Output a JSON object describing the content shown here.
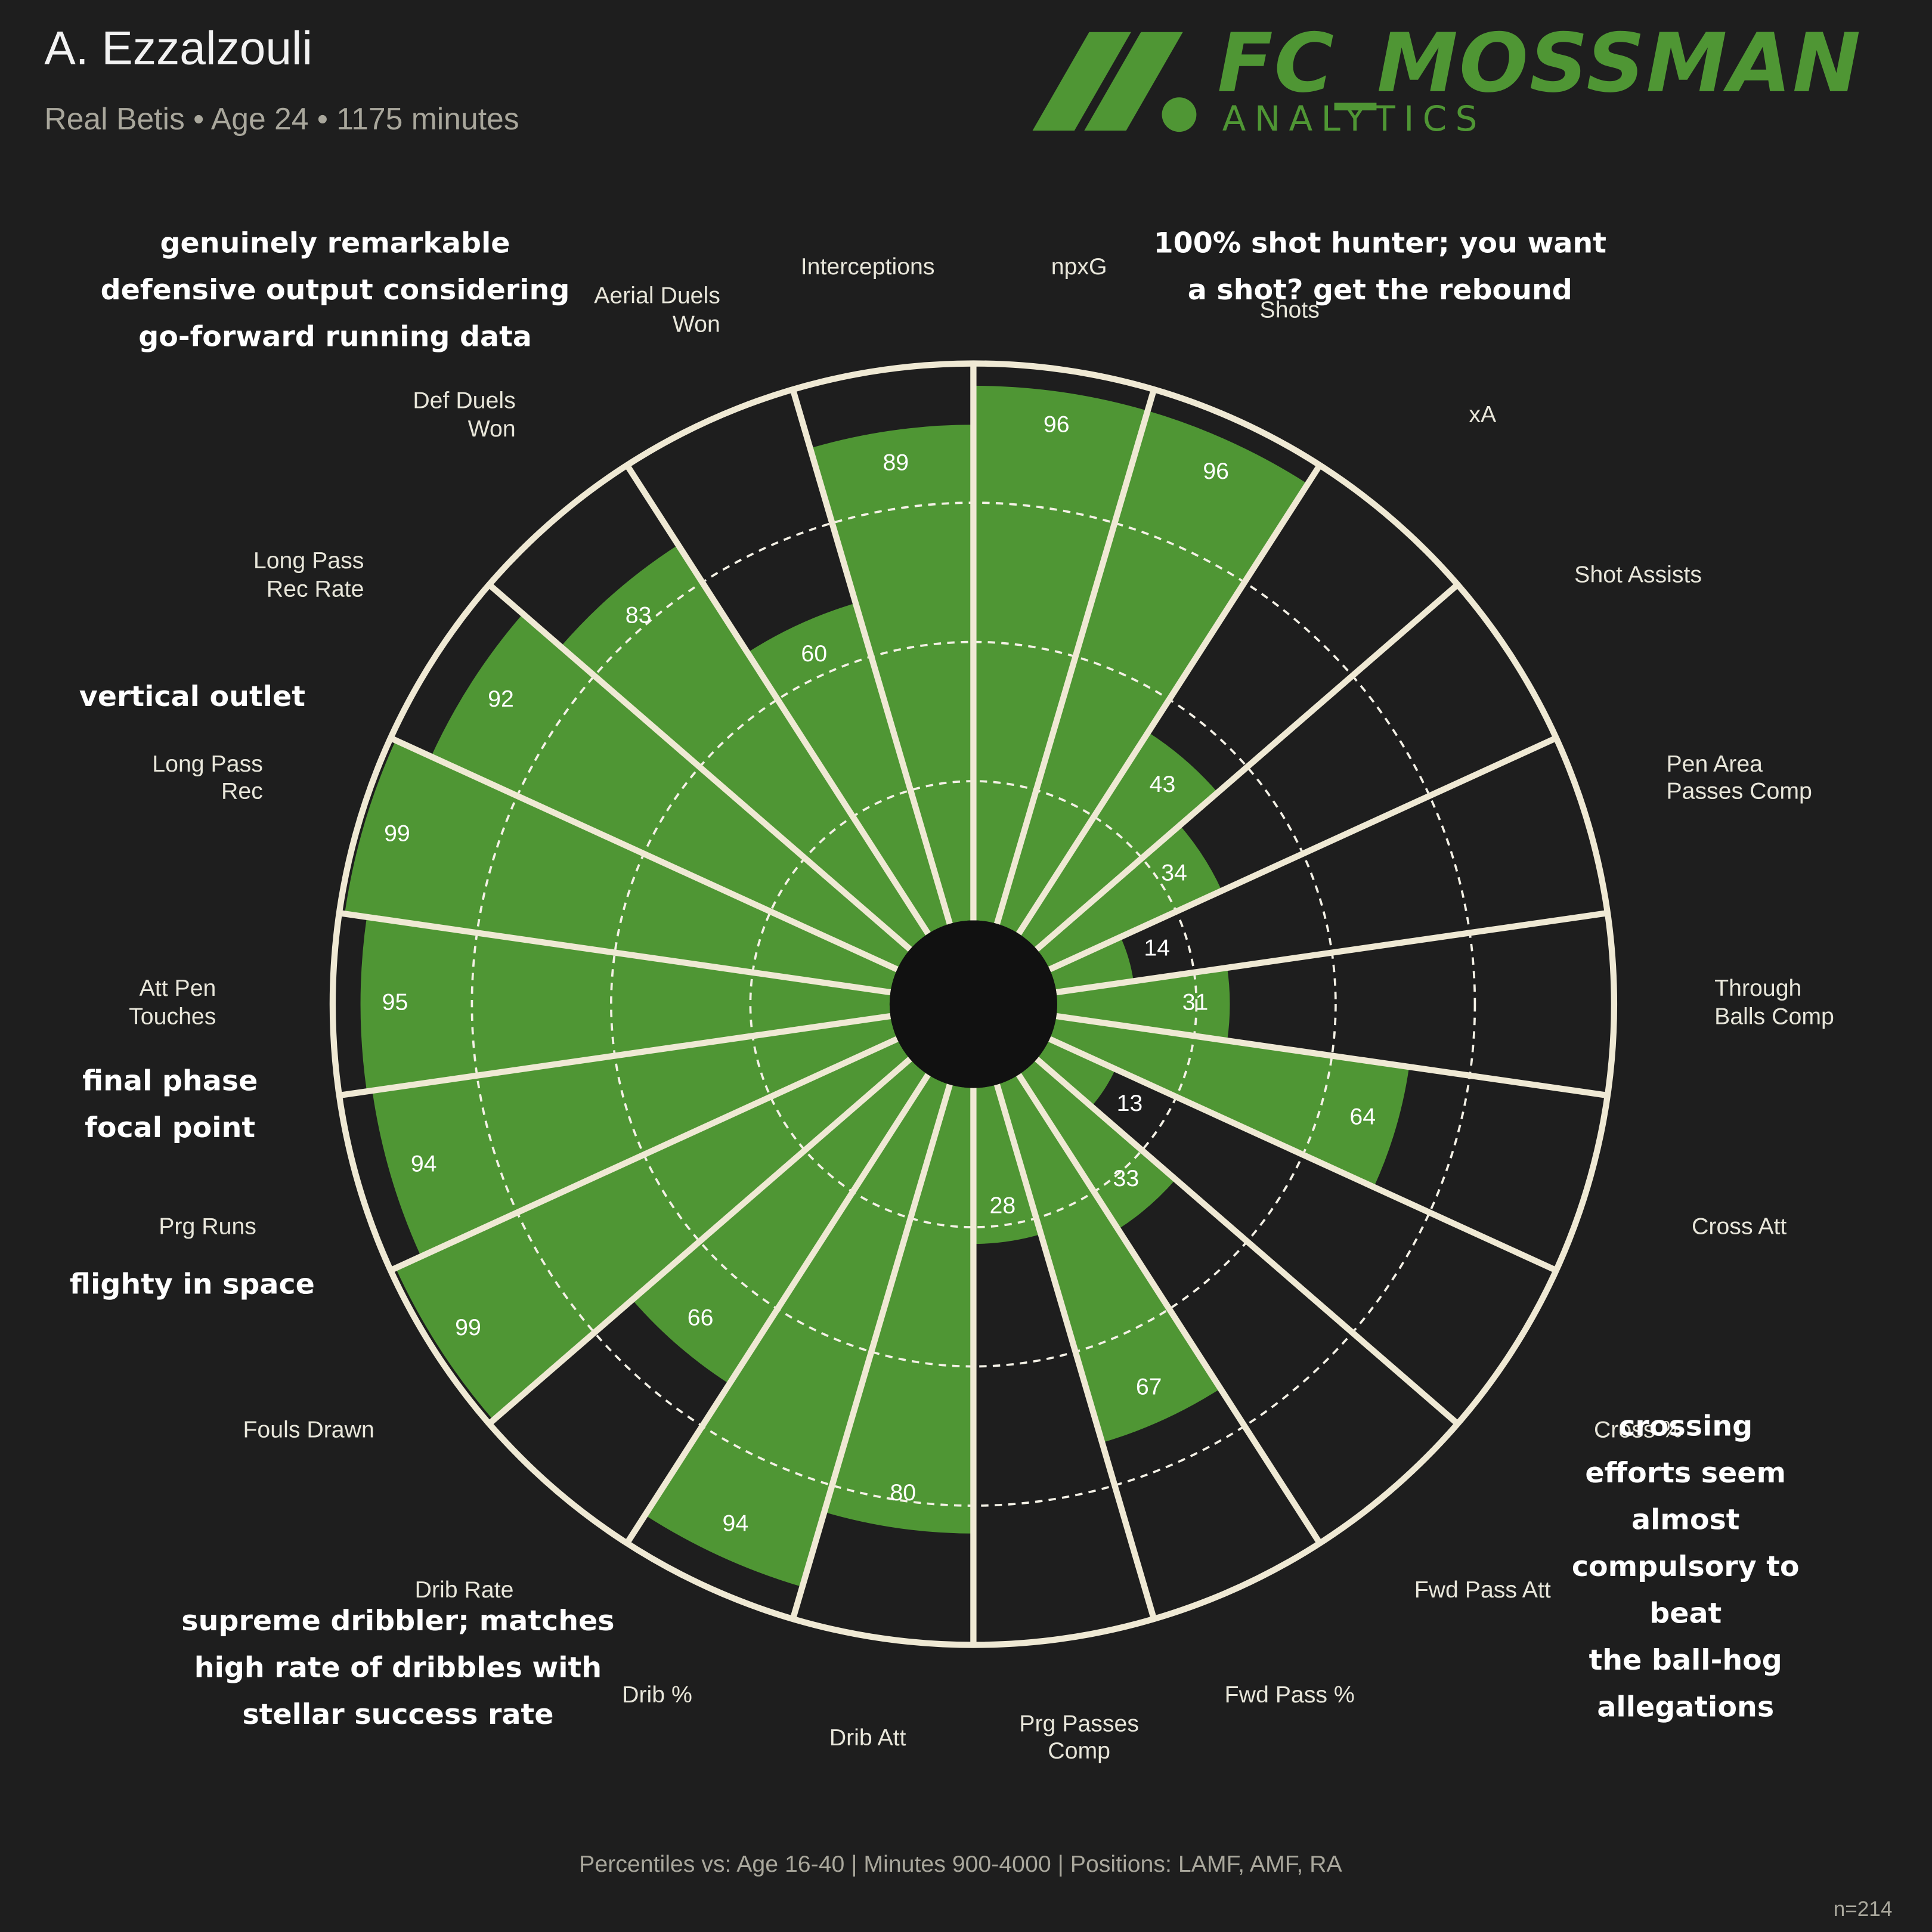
{
  "chart_data": {
    "type": "pizza",
    "title": "A. Ezzalzouli",
    "subtitle": "Real Betis • Age 24 • 1175 minutes",
    "logo_text": "FC_MOSSMAN",
    "logo_subtext": "ANALYTICS",
    "categories": [
      "npxG",
      "Shots",
      "xA",
      "Shot Assists",
      "Pen Area\nPasses Comp",
      "Through\nBalls Comp",
      "Cross Att",
      "Cross %",
      "Fwd Pass Att",
      "Fwd Pass %",
      "Prg Passes\nComp",
      "Drib Att",
      "Drib %",
      "Drib Rate",
      "Fouls Drawn",
      "Prg Runs",
      "Att Pen\nTouches",
      "Long Pass\nRec",
      "Long Pass\nRec Rate",
      "Def Duels\nWon",
      "Aerial Duels\nWon",
      "Interceptions"
    ],
    "values": [
      96,
      96,
      43,
      34,
      14,
      31,
      64,
      13,
      33,
      67,
      28,
      80,
      94,
      66,
      99,
      94,
      95,
      99,
      92,
      83,
      60,
      89
    ],
    "color": "#4f9634",
    "ylim": [
      0,
      100
    ],
    "yticks": [
      25,
      50,
      75
    ],
    "grid": true,
    "annotations": [
      "genuinely remarkable\ndefensive output considering\ngo-forward running data",
      "100% shot hunter; you want\na shot? get the rebound",
      "vertical outlet",
      "final phase\nfocal point",
      "flighty in space",
      "crossing efforts seem\nalmost compulsory to beat\nthe ball-hog allegations",
      "supreme dribbler; matches\nhigh rate of dribbles with\nstellar success rate"
    ],
    "footnote": "Percentiles vs: Age 16-40 | Minutes 900-4000 | Positions: LAMF, AMF, RA",
    "sample_size": "n=214"
  }
}
